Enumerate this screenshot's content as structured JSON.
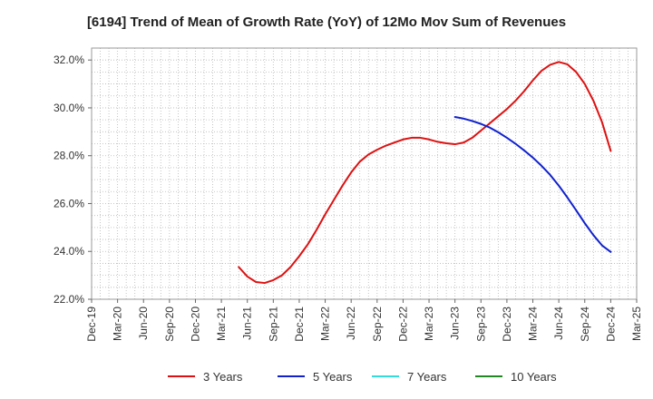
{
  "chart_data": {
    "type": "line",
    "title": "[6194]  Trend of Mean of Growth Rate (YoY) of 12Mo Mov Sum of Revenues",
    "xlabel": "",
    "ylabel": "",
    "ylim": [
      22.0,
      32.5
    ],
    "y_ticks": [
      22.0,
      24.0,
      26.0,
      28.0,
      30.0,
      32.0
    ],
    "y_tick_labels": [
      "22.0%",
      "24.0%",
      "26.0%",
      "28.0%",
      "30.0%",
      "32.0%"
    ],
    "x_tick_labels": [
      "Dec-19",
      "Mar-20",
      "Jun-20",
      "Sep-20",
      "Dec-20",
      "Mar-21",
      "Jun-21",
      "Sep-21",
      "Dec-21",
      "Mar-22",
      "Jun-22",
      "Sep-22",
      "Dec-22",
      "Mar-23",
      "Jun-23",
      "Sep-23",
      "Dec-23",
      "Mar-24",
      "Jun-24",
      "Sep-24",
      "Dec-24",
      "Mar-25"
    ],
    "grid": true,
    "legend_position": "bottom",
    "series": [
      {
        "name": "3 Years",
        "color": "#dd1111",
        "start_month_index": 17,
        "values": [
          23.35,
          22.95,
          22.72,
          22.68,
          22.8,
          23.0,
          23.35,
          23.8,
          24.3,
          24.9,
          25.55,
          26.15,
          26.75,
          27.3,
          27.75,
          28.05,
          28.25,
          28.42,
          28.55,
          28.68,
          28.75,
          28.75,
          28.68,
          28.58,
          28.52,
          28.48,
          28.55,
          28.75,
          29.05,
          29.35,
          29.65,
          29.95,
          30.3,
          30.7,
          31.15,
          31.55,
          31.8,
          31.92,
          31.82,
          31.5,
          31.0,
          30.3,
          29.4,
          28.2
        ]
      },
      {
        "name": "5 Years",
        "color": "#1122cc",
        "start_month_index": 42,
        "values": [
          29.62,
          29.55,
          29.45,
          29.33,
          29.18,
          28.98,
          28.75,
          28.5,
          28.22,
          27.92,
          27.58,
          27.2,
          26.75,
          26.25,
          25.72,
          25.18,
          24.68,
          24.25,
          23.98
        ]
      },
      {
        "name": "7 Years",
        "color": "#33dddd",
        "start_month_index": 0,
        "values": []
      },
      {
        "name": "10 Years",
        "color": "#228822",
        "start_month_index": 0,
        "values": []
      }
    ]
  }
}
